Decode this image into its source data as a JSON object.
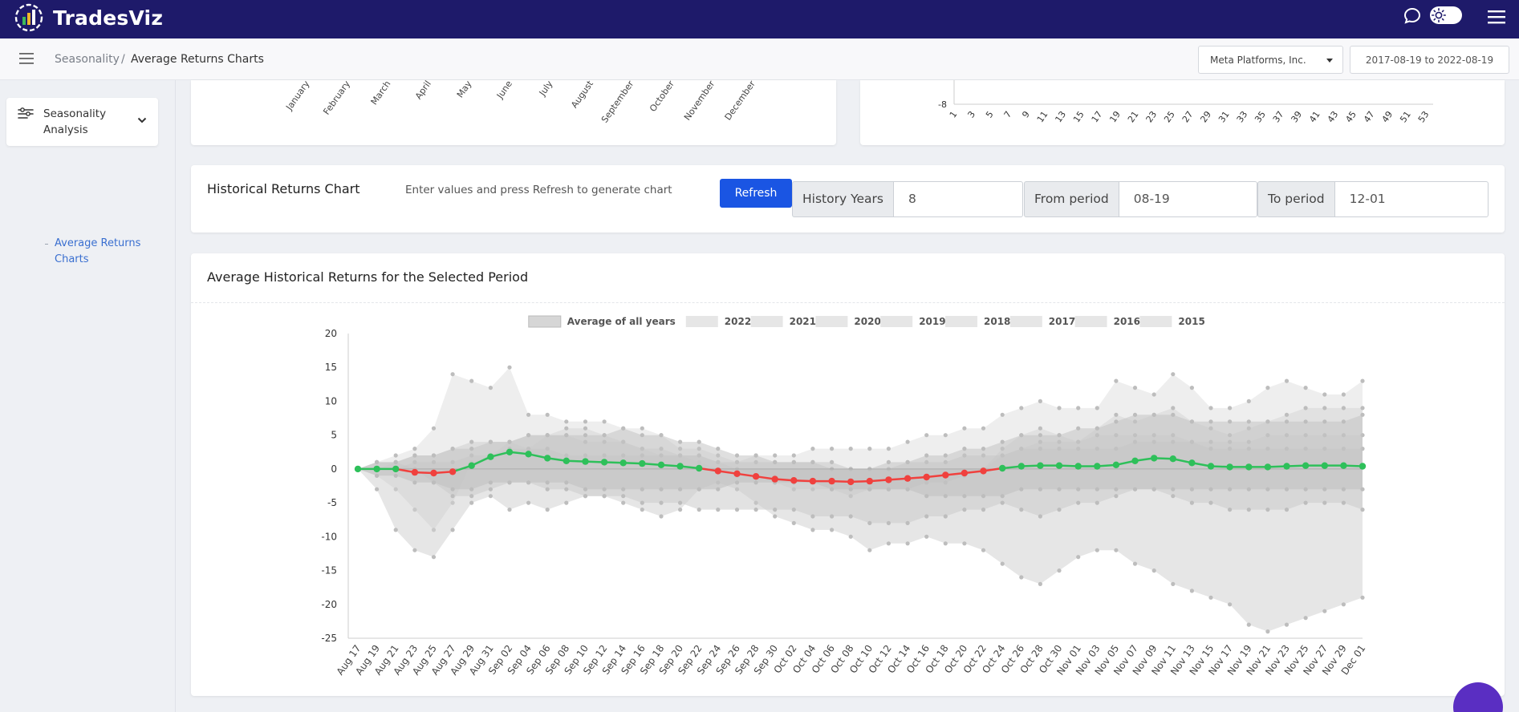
{
  "app": {
    "brand": "TradesViz",
    "icons": {
      "logo": "tradesviz-logo-icon",
      "chat": "chat-icon",
      "theme": "sun-icon",
      "menu": "menu-icon"
    }
  },
  "breadcrumb": {
    "parent": "Seasonality",
    "separator": "/",
    "current": "Average Returns Charts"
  },
  "header": {
    "company": "Meta Platforms, Inc.",
    "date_range": "2017-08-19 to 2022-08-19"
  },
  "sidebar": {
    "section_label": "Seasonality Analysis",
    "subitem_label": "Average Returns Charts"
  },
  "month_chart": {
    "months": [
      "January",
      "February",
      "March",
      "April",
      "May",
      "June",
      "July",
      "August",
      "September",
      "October",
      "November",
      "December"
    ]
  },
  "week_chart": {
    "y_min_label": "-8",
    "week_ticks": [
      "1",
      "3",
      "5",
      "7",
      "9",
      "11",
      "13",
      "15",
      "17",
      "19",
      "21",
      "23",
      "25",
      "27",
      "29",
      "31",
      "33",
      "35",
      "37",
      "39",
      "41",
      "43",
      "45",
      "47",
      "49",
      "51",
      "53"
    ]
  },
  "controls": {
    "title": "Historical Returns Chart",
    "hint": "Enter values and press Refresh to generate chart",
    "refresh_label": "Refresh",
    "history_years_label": "History Years",
    "history_years_value": "8",
    "from_label": "From period",
    "from_value": "08-19",
    "to_label": "To period",
    "to_value": "12-01"
  },
  "main_chart": {
    "title": "Average Historical Returns for the Selected Period"
  },
  "chart_data": {
    "type": "area",
    "title": "Average Historical Returns for the Selected Period",
    "xlabel": "",
    "ylabel": "",
    "ylim": [
      -25,
      20
    ],
    "yticks": [
      20,
      15,
      10,
      5,
      0,
      -5,
      -10,
      -15,
      -20,
      -25
    ],
    "legend": [
      "Average of all years",
      "2022",
      "2021",
      "2020",
      "2019",
      "2018",
      "2017",
      "2016",
      "2015"
    ],
    "legend_position": "top-center",
    "categories": [
      "Aug 17",
      "Aug 19",
      "Aug 21",
      "Aug 23",
      "Aug 25",
      "Aug 27",
      "Aug 29",
      "Aug 31",
      "Sep 02",
      "Sep 04",
      "Sep 06",
      "Sep 08",
      "Sep 10",
      "Sep 12",
      "Sep 14",
      "Sep 16",
      "Sep 18",
      "Sep 20",
      "Sep 22",
      "Sep 24",
      "Sep 26",
      "Sep 28",
      "Sep 30",
      "Oct 02",
      "Oct 04",
      "Oct 06",
      "Oct 08",
      "Oct 10",
      "Oct 12",
      "Oct 14",
      "Oct 16",
      "Oct 18",
      "Oct 20",
      "Oct 22",
      "Oct 24",
      "Oct 26",
      "Oct 28",
      "Oct 30",
      "Nov 01",
      "Nov 03",
      "Nov 05",
      "Nov 07",
      "Nov 09",
      "Nov 11",
      "Nov 13",
      "Nov 15",
      "Nov 17",
      "Nov 19",
      "Nov 21",
      "Nov 23",
      "Nov 25",
      "Nov 27",
      "Nov 29",
      "Dec 01"
    ],
    "series": [
      {
        "name": "Average of all years",
        "values": [
          0,
          0,
          0,
          -0.5,
          -0.6,
          -0.4,
          0.5,
          1.8,
          2.5,
          2.2,
          1.6,
          1.2,
          1.1,
          1.0,
          0.9,
          0.8,
          0.6,
          0.4,
          0.1,
          -0.3,
          -0.7,
          -1.1,
          -1.5,
          -1.7,
          -1.8,
          -1.8,
          -1.9,
          -1.8,
          -1.6,
          -1.4,
          -1.2,
          -0.9,
          -0.6,
          -0.3,
          0.1,
          0.4,
          0.5,
          0.5,
          0.4,
          0.4,
          0.6,
          1.2,
          1.6,
          1.5,
          0.9,
          0.4,
          0.3,
          0.3,
          0.3,
          0.4,
          0.5,
          0.5,
          0.5,
          0.4
        ]
      },
      {
        "name": "2022",
        "values": [
          0,
          1,
          2,
          3,
          6,
          14,
          13,
          12,
          15,
          8,
          8,
          7,
          7,
          7,
          6,
          6,
          5,
          3,
          3,
          2,
          1,
          2,
          2,
          2,
          3,
          3,
          3,
          3,
          3,
          4,
          5,
          5,
          6,
          6,
          8,
          9,
          10,
          9,
          9,
          9,
          13,
          12,
          11,
          14,
          12,
          9,
          9,
          10,
          12,
          13,
          12,
          11,
          11,
          13
        ]
      },
      {
        "name": "2021",
        "values": [
          0,
          -1,
          -3,
          -6,
          -9,
          -5,
          1,
          2,
          4,
          3,
          5,
          6,
          6,
          5,
          4,
          3,
          2,
          2,
          1,
          0,
          -1,
          -1,
          -1,
          -2,
          -2,
          -2,
          -3,
          -3,
          -3,
          -3,
          -2,
          -2,
          -1,
          0,
          3,
          5,
          6,
          5,
          4,
          6,
          8,
          7,
          8,
          9,
          7,
          6,
          5,
          6,
          7,
          8,
          9,
          9,
          9,
          9
        ]
      },
      {
        "name": "2020",
        "values": [
          0,
          -3,
          -9,
          -12,
          -13,
          -9,
          -5,
          -4,
          -6,
          -5,
          -6,
          -5,
          -4,
          -4,
          -5,
          -6,
          -7,
          -6,
          -3,
          -2,
          -3,
          -5,
          -7,
          -8,
          -9,
          -9,
          -10,
          -12,
          -11,
          -11,
          -10,
          -11,
          -11,
          -12,
          -14,
          -16,
          -17,
          -15,
          -13,
          -12,
          -12,
          -14,
          -15,
          -17,
          -18,
          -19,
          -20,
          -23,
          -24,
          -23,
          -22,
          -21,
          -20,
          -19
        ]
      },
      {
        "name": "2019",
        "values": [
          0,
          0,
          1,
          2,
          2,
          3,
          4,
          4,
          4,
          5,
          5,
          5,
          4,
          4,
          4,
          3,
          3,
          2,
          2,
          1,
          0,
          -1,
          -2,
          -3,
          -3,
          -3,
          -4,
          -3,
          -3,
          -3,
          -2,
          -2,
          -1,
          0,
          2,
          3,
          4,
          4,
          4,
          5,
          5,
          5,
          5,
          5,
          4,
          4,
          4,
          4,
          5,
          5,
          5,
          5,
          5,
          5
        ]
      },
      {
        "name": "2018",
        "values": [
          0,
          1,
          1,
          0,
          -2,
          -4,
          -4,
          -3,
          -2,
          -2,
          -3,
          -3,
          -4,
          -4,
          -4,
          -5,
          -5,
          -5,
          -6,
          -6,
          -6,
          -6,
          -6,
          -6,
          -7,
          -7,
          -7,
          -8,
          -8,
          -8,
          -7,
          -7,
          -6,
          -6,
          -5,
          -6,
          -7,
          -6,
          -5,
          -5,
          -4,
          -3,
          -3,
          -4,
          -5,
          -5,
          -6,
          -6,
          -6,
          -6,
          -5,
          -5,
          -5,
          -6
        ]
      },
      {
        "name": "2017",
        "values": [
          0,
          0,
          0,
          1,
          1,
          1,
          2,
          2,
          3,
          3,
          3,
          2,
          2,
          2,
          2,
          2,
          2,
          2,
          2,
          1,
          1,
          1,
          1,
          1,
          1,
          1,
          0,
          0,
          0,
          1,
          1,
          1,
          2,
          2,
          2,
          3,
          3,
          3,
          3,
          3,
          3,
          4,
          4,
          4,
          4,
          3,
          3,
          3,
          3,
          3,
          3,
          3,
          3,
          3
        ]
      },
      {
        "name": "2016",
        "values": [
          0,
          1,
          1,
          2,
          2,
          3,
          3,
          4,
          4,
          5,
          5,
          5,
          5,
          5,
          6,
          5,
          5,
          4,
          4,
          3,
          2,
          2,
          1,
          1,
          1,
          0,
          0,
          0,
          1,
          1,
          2,
          2,
          3,
          3,
          4,
          5,
          5,
          5,
          6,
          6,
          7,
          8,
          8,
          8,
          7,
          7,
          7,
          7,
          7,
          7,
          7,
          7,
          7,
          8
        ]
      },
      {
        "name": "2015",
        "values": [
          0,
          -1,
          -1,
          -2,
          -2,
          -3,
          -3,
          -2,
          -2,
          -2,
          -2,
          -2,
          -3,
          -3,
          -3,
          -3,
          -3,
          -3,
          -3,
          -3,
          -2,
          -2,
          -2,
          -2,
          -2,
          -3,
          -3,
          -3,
          -3,
          -3,
          -4,
          -4,
          -4,
          -4,
          -4,
          -3,
          -3,
          -3,
          -3,
          -3,
          -3,
          -3,
          -3,
          -3,
          -3,
          -3,
          -3,
          -3,
          -3,
          -3,
          -3,
          -3,
          -3,
          -3
        ]
      }
    ]
  },
  "floating": {
    "chat_label": "chat-widget-icon"
  }
}
